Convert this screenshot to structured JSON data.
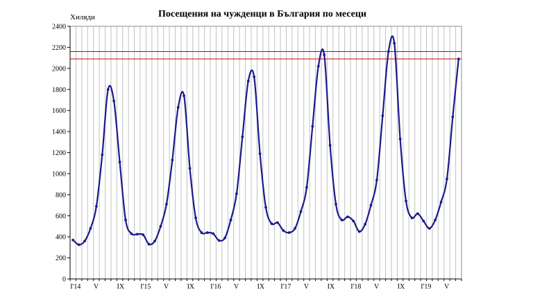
{
  "chart_data": {
    "type": "line",
    "title": "Посещения на чужденци в България по месеци",
    "ylabel": "Хиляди",
    "xlabel": "",
    "ylim": [
      0,
      2400
    ],
    "yticks": [
      0,
      200,
      400,
      600,
      800,
      1000,
      1200,
      1400,
      1600,
      1800,
      2000,
      2200,
      2400
    ],
    "grid": "vertical",
    "x_start": "2014-01",
    "x_end": "2019-07",
    "x_tick_labels": [
      {
        "month_index": 0,
        "label": "I'14"
      },
      {
        "month_index": 4,
        "label": "V"
      },
      {
        "month_index": 8,
        "label": "IX"
      },
      {
        "month_index": 12,
        "label": "I'15"
      },
      {
        "month_index": 16,
        "label": "V"
      },
      {
        "month_index": 20,
        "label": "IX"
      },
      {
        "month_index": 24,
        "label": "I'16"
      },
      {
        "month_index": 28,
        "label": "V"
      },
      {
        "month_index": 32,
        "label": "IX"
      },
      {
        "month_index": 36,
        "label": "I'17"
      },
      {
        "month_index": 40,
        "label": "V"
      },
      {
        "month_index": 44,
        "label": "IX"
      },
      {
        "month_index": 48,
        "label": "I'18"
      },
      {
        "month_index": 52,
        "label": "V"
      },
      {
        "month_index": 56,
        "label": "IX"
      },
      {
        "month_index": 60,
        "label": "I'19"
      },
      {
        "month_index": 64,
        "label": "V"
      }
    ],
    "series": [
      {
        "color": "#1a1a8c",
        "values": [
          370,
          325,
          360,
          480,
          690,
          1180,
          1800,
          1690,
          1110,
          560,
          430,
          425,
          420,
          330,
          360,
          500,
          710,
          1130,
          1630,
          1740,
          1050,
          580,
          440,
          440,
          430,
          365,
          390,
          560,
          810,
          1350,
          1880,
          1920,
          1190,
          680,
          525,
          535,
          460,
          440,
          480,
          640,
          870,
          1450,
          2020,
          2130,
          1270,
          710,
          560,
          590,
          550,
          450,
          520,
          700,
          940,
          1550,
          2160,
          2240,
          1330,
          740,
          580,
          620,
          550,
          480,
          560,
          730,
          950,
          1540,
          2090
        ]
      }
    ],
    "reference_lines": [
      {
        "y": 2160,
        "color": "#cc0000"
      },
      {
        "y": 2090,
        "color": "#cc0000"
      }
    ]
  }
}
